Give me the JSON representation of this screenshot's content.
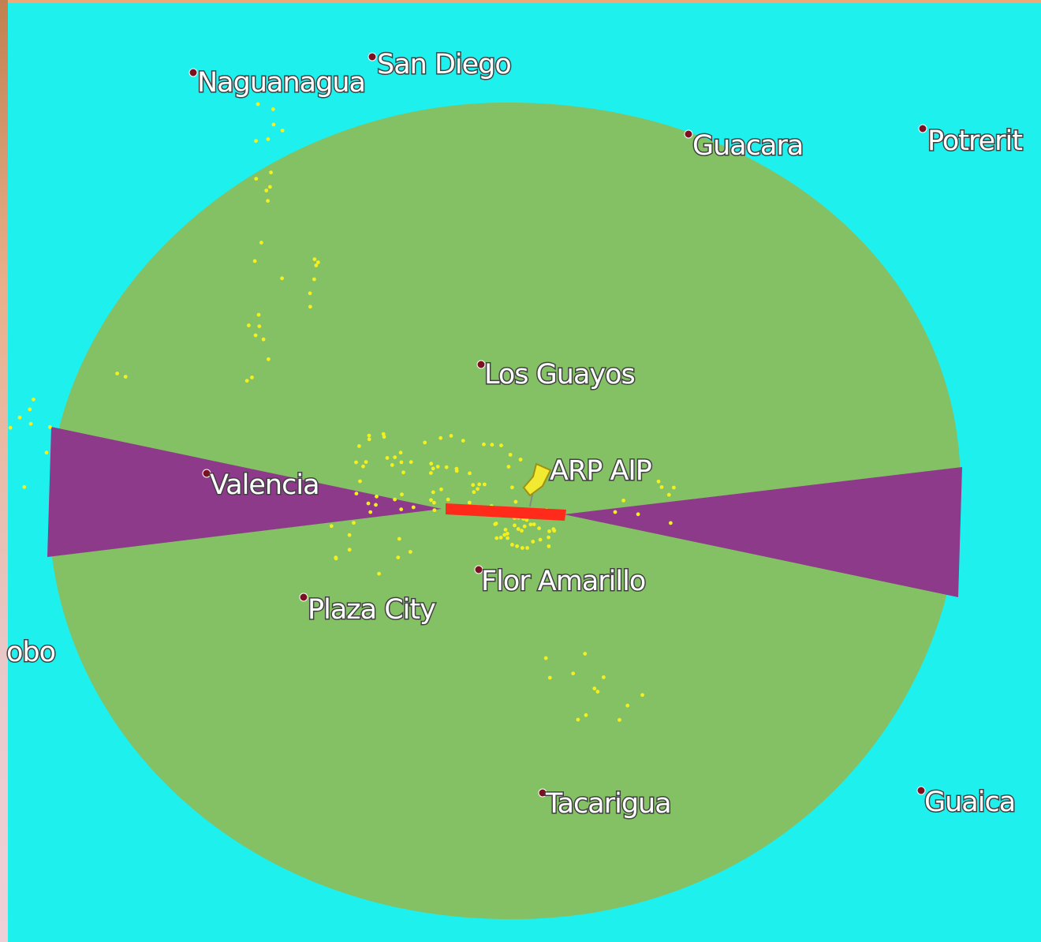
{
  "places": [
    {
      "label": "Naguanagua"
    },
    {
      "label": "San Diego"
    },
    {
      "label": "Guacara"
    },
    {
      "label": "Potrerit"
    },
    {
      "label": "Los Guayos"
    },
    {
      "label": "Valencia"
    },
    {
      "label": "Flor Amarillo"
    },
    {
      "label": "Plaza City"
    },
    {
      "label": "obo"
    },
    {
      "label": "Tacarigua"
    },
    {
      "label": "Guaica"
    }
  ],
  "airport": {
    "label": "ARP AIP"
  }
}
